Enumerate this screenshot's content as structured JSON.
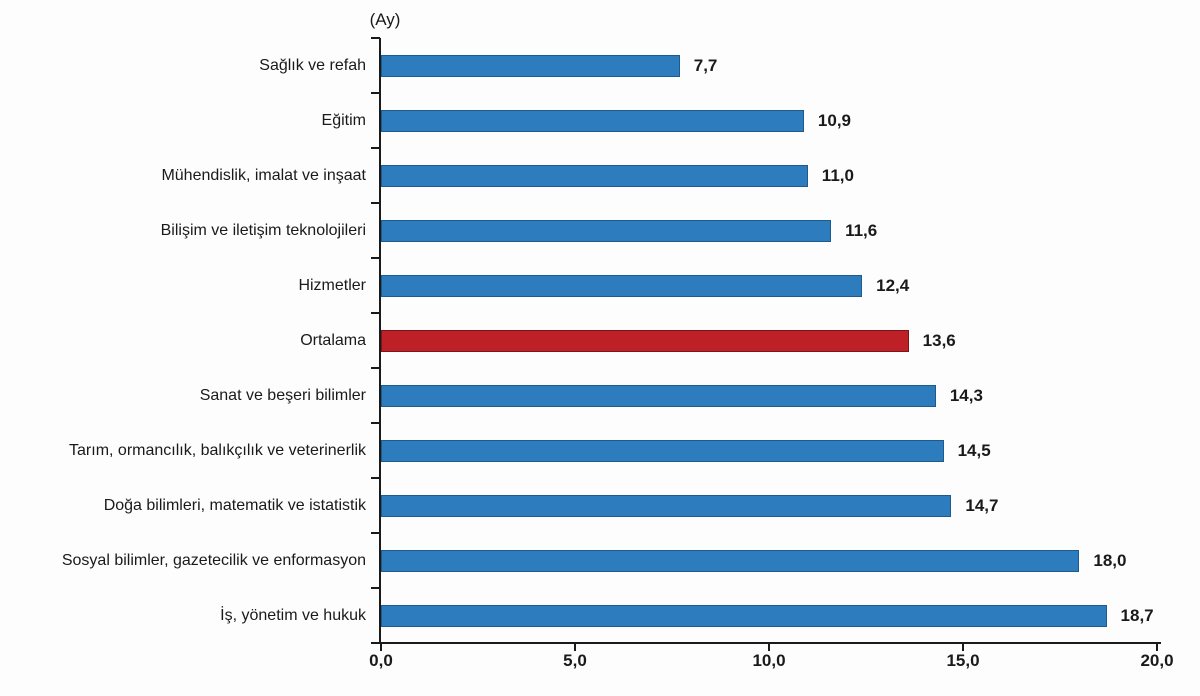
{
  "chart_data": {
    "type": "bar",
    "orientation": "horizontal",
    "title": "(Ay)",
    "xlabel": "",
    "ylabel": "",
    "xlim": [
      0,
      20
    ],
    "grid": false,
    "legend": "none",
    "categories": [
      "Sağlık ve refah",
      "Eğitim",
      "Mühendislik, imalat ve inşaat",
      "Bilişim ve iletişim teknolojileri",
      "Hizmetler",
      "Ortalama",
      "Sanat ve beşeri bilimler",
      "Tarım, ormancılık, balıkçılık ve veterinerlik",
      "Doğa bilimleri, matematik ve istatistik",
      "Sosyal bilimler, gazetecilik ve enformasyon",
      "İş, yönetim ve hukuk"
    ],
    "values": [
      7.7,
      10.9,
      11.0,
      11.6,
      12.4,
      13.6,
      14.3,
      14.5,
      14.7,
      18.0,
      18.7
    ],
    "value_labels": [
      "7,7",
      "10,9",
      "11,0",
      "11,6",
      "12,4",
      "13,6",
      "14,3",
      "14,5",
      "14,7",
      "18,0",
      "18,7"
    ],
    "highlight_index": 5,
    "highlight_category": "Ortalama",
    "colors": {
      "bar_default": "#2D7DBE",
      "bar_default_border": "#1E5A8C",
      "bar_highlight": "#BE2028",
      "bar_highlight_border": "#7D1419",
      "axis": "#1a1a1a",
      "text": "#1a1a1a"
    },
    "x_ticks": [
      {
        "value": 0,
        "label": "0,0"
      },
      {
        "value": 5,
        "label": "5,0"
      },
      {
        "value": 10,
        "label": "10,0"
      },
      {
        "value": 15,
        "label": "15,0"
      },
      {
        "value": 20,
        "label": "20,0"
      }
    ]
  }
}
